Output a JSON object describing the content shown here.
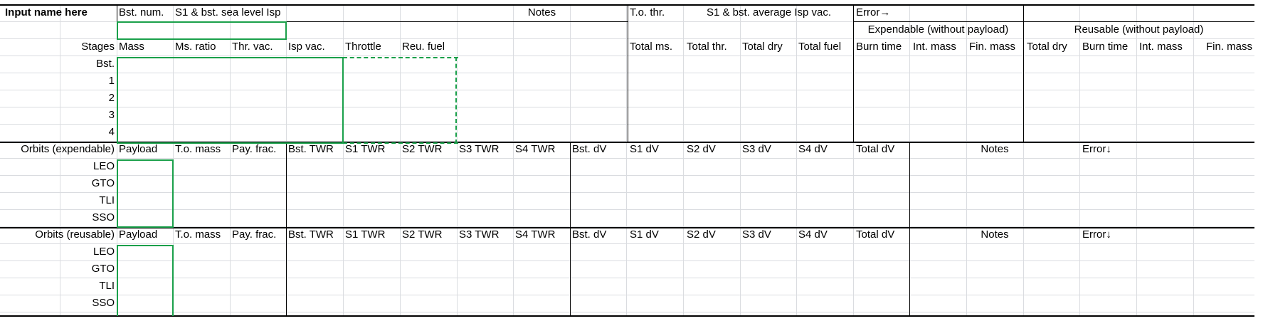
{
  "sheet": {
    "name_cell": "Input name here",
    "top": {
      "bst_num": "Bst. num.",
      "s1_sea_isp": "S1 & bst. sea level Isp",
      "notes": "Notes",
      "to_thr": "T.o. thr.",
      "s1_avg_isp": "S1 & bst. average Isp vac.",
      "error_right": "Error→"
    },
    "groups": {
      "expendable": "Expendable (without payload)",
      "reusable": "Reusable (without payload)"
    },
    "stage_header": {
      "stages": "Stages",
      "mass": "Mass",
      "ms_ratio": "Ms. ratio",
      "thr_vac": "Thr. vac.",
      "isp_vac": "Isp vac.",
      "throttle": "Throttle",
      "reu_fuel": "Reu. fuel",
      "total_ms": "Total ms.",
      "total_thr": "Total thr.",
      "total_dry": "Total dry",
      "total_fuel": "Total fuel",
      "exp_burn": "Burn time",
      "exp_int": "Int. mass",
      "exp_fin": "Fin. mass",
      "reu_total_dry": "Total dry",
      "reu_burn": "Burn time",
      "reu_int": "Int. mass",
      "reu_fin": "Fin. mass"
    },
    "stages": [
      "Bst.",
      "1",
      "2",
      "3",
      "4"
    ],
    "orbit_header": {
      "payload": "Payload",
      "to_mass": "T.o. mass",
      "pay_frac": "Pay. frac.",
      "bst_twr": "Bst. TWR",
      "s1_twr": "S1 TWR",
      "s2_twr": "S2 TWR",
      "s3_twr": "S3 TWR",
      "s4_twr": "S4 TWR",
      "bst_dv": "Bst. dV",
      "s1_dv": "S1 dV",
      "s2_dv": "S2 dV",
      "s3_dv": "S3 dV",
      "s4_dv": "S4 dV",
      "total_dv": "Total dV",
      "notes": "Notes",
      "error_down": "Error↓"
    },
    "orbits_expendable_label": "Orbits (expendable)",
    "orbits_reusable_label": "Orbits (reusable)",
    "orbits": [
      "LEO",
      "GTO",
      "TLI",
      "SSO"
    ]
  },
  "colors": {
    "input_border": "#1aa04a",
    "gridline": "#dadce0",
    "border": "#000000"
  }
}
